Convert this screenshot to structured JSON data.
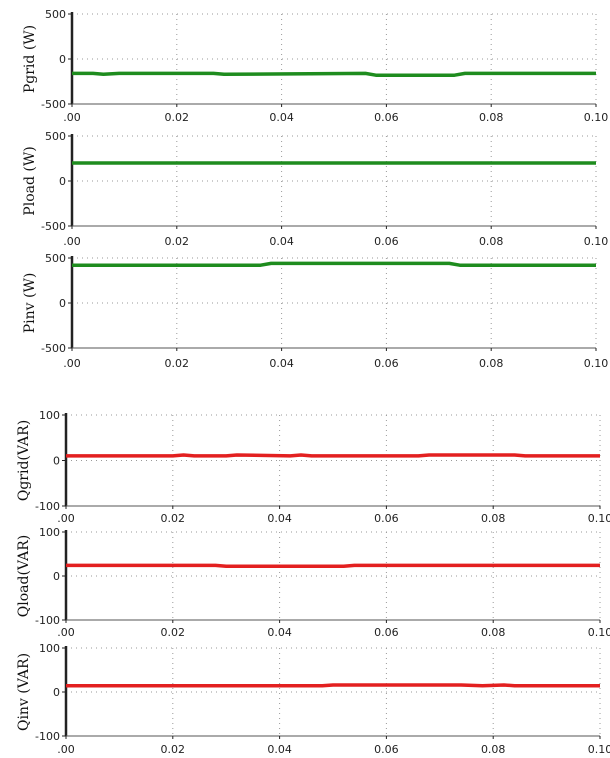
{
  "chart_data": [
    {
      "type": "line",
      "ylabel": "Pgrid (W)",
      "color": "#1e8c1e",
      "ylim": [
        -500,
        500
      ],
      "xlim": [
        0,
        0.1
      ],
      "xticks": [
        ".00",
        "0.02",
        "0.04",
        "0.06",
        "0.08",
        "0.10"
      ],
      "yticks": [
        "500",
        "0",
        "-500"
      ],
      "x": [
        0,
        0.004,
        0.006,
        0.009,
        0.027,
        0.029,
        0.056,
        0.058,
        0.073,
        0.075,
        0.1
      ],
      "values": [
        -160,
        -160,
        -170,
        -160,
        -160,
        -170,
        -160,
        -180,
        -180,
        -160,
        -160
      ]
    },
    {
      "type": "line",
      "ylabel": "Pload (W)",
      "color": "#1e8c1e",
      "ylim": [
        -500,
        500
      ],
      "xlim": [
        0,
        0.1
      ],
      "xticks": [
        ".00",
        "0.02",
        "0.04",
        "0.06",
        "0.08",
        "0.10"
      ],
      "yticks": [
        "500",
        "0",
        "-500"
      ],
      "x": [
        0,
        0.1
      ],
      "values": [
        200,
        200
      ]
    },
    {
      "type": "line",
      "ylabel": "Pinv (W)",
      "color": "#1e8c1e",
      "ylim": [
        -500,
        500
      ],
      "xlim": [
        0,
        0.1
      ],
      "xticks": [
        ".00",
        "0.02",
        "0.04",
        "0.06",
        "0.08",
        "0.10"
      ],
      "yticks": [
        "500",
        "0",
        "-500"
      ],
      "x": [
        0,
        0.036,
        0.038,
        0.072,
        0.074,
        0.1
      ],
      "values": [
        420,
        420,
        440,
        440,
        420,
        420
      ]
    },
    {
      "type": "line",
      "ylabel": "Qgrid(VAR)",
      "color": "#e32020",
      "ylim": [
        -100,
        100
      ],
      "xlim": [
        0,
        0.1
      ],
      "xticks": [
        ".00",
        "0.02",
        "0.04",
        "0.06",
        "0.08",
        "0.10"
      ],
      "yticks": [
        "100",
        "0",
        "-100"
      ],
      "x": [
        0,
        0.02,
        0.022,
        0.024,
        0.03,
        0.032,
        0.042,
        0.044,
        0.046,
        0.066,
        0.068,
        0.084,
        0.086,
        0.1
      ],
      "values": [
        10,
        10,
        12,
        10,
        10,
        12,
        10,
        12,
        10,
        10,
        12,
        12,
        10,
        10
      ]
    },
    {
      "type": "line",
      "ylabel": "Qload(VAR)",
      "color": "#e32020",
      "ylim": [
        -100,
        100
      ],
      "xlim": [
        0,
        0.1
      ],
      "xticks": [
        ".00",
        "0.02",
        "0.04",
        "0.06",
        "0.08",
        "0.10"
      ],
      "yticks": [
        "100",
        "0",
        "-100"
      ],
      "x": [
        0,
        0.028,
        0.03,
        0.052,
        0.054,
        0.1
      ],
      "values": [
        24,
        24,
        22,
        22,
        24,
        24
      ]
    },
    {
      "type": "line",
      "ylabel": "Qinv (VAR)",
      "color": "#e32020",
      "ylim": [
        -100,
        100
      ],
      "xlim": [
        0,
        0.1
      ],
      "xticks": [
        ".00",
        "0.02",
        "0.04",
        "0.06",
        "0.08",
        "0.10"
      ],
      "yticks": [
        "100",
        "0",
        "-100"
      ],
      "x": [
        0,
        0.048,
        0.05,
        0.074,
        0.078,
        0.082,
        0.084,
        0.1
      ],
      "values": [
        14,
        14,
        16,
        16,
        14,
        16,
        14,
        14
      ]
    }
  ]
}
